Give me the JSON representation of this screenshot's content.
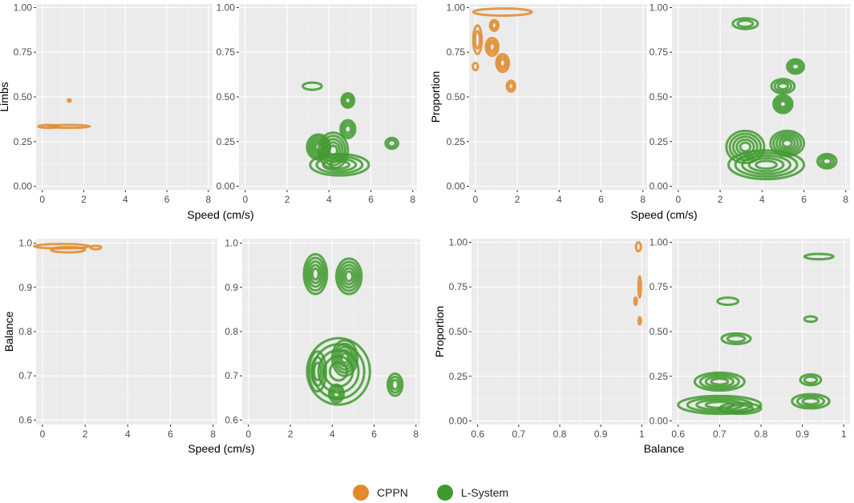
{
  "chart_data": [
    {
      "type": "contour",
      "panel": "top-left",
      "xlabel": "Speed (cm/s)",
      "ylabel": "Limbs",
      "xlim": [
        -0.3,
        8.2
      ],
      "ylim": [
        -0.02,
        1.02
      ],
      "xticks": [
        0,
        2,
        4,
        6,
        8
      ],
      "yticks": [
        0.0,
        0.25,
        0.5,
        0.75,
        1.0
      ],
      "ytick_labels": [
        "0.00",
        "0.25",
        "0.50",
        "0.75",
        "1.00"
      ],
      "series": [
        {
          "name": "CPPN",
          "regions": [
            {
              "x": 0.3,
              "y": 0.335,
              "rx": 0.5,
              "ry": 0.008
            },
            {
              "x": 1.3,
              "y": 0.335,
              "rx": 1.0,
              "ry": 0.008
            },
            {
              "x": 1.3,
              "y": 0.48,
              "rx": 0.07,
              "ry": 0.006
            }
          ]
        },
        {
          "name": "L-System",
          "regions": [
            {
              "x": 3.2,
              "y": 0.56,
              "rx": 0.45,
              "ry": 0.02
            },
            {
              "x": 3.5,
              "y": 0.22,
              "rx": 0.55,
              "ry": 0.07
            },
            {
              "x": 4.5,
              "y": 0.12,
              "rx": 1.4,
              "ry": 0.06
            },
            {
              "x": 4.2,
              "y": 0.2,
              "rx": 0.7,
              "ry": 0.1
            },
            {
              "x": 4.9,
              "y": 0.48,
              "rx": 0.3,
              "ry": 0.04
            },
            {
              "x": 4.9,
              "y": 0.32,
              "rx": 0.35,
              "ry": 0.05
            },
            {
              "x": 7.0,
              "y": 0.24,
              "rx": 0.3,
              "ry": 0.03
            }
          ]
        }
      ]
    },
    {
      "type": "contour",
      "panel": "top-right",
      "xlabel": "Speed (cm/s)",
      "ylabel": "Proportion",
      "xlim": [
        -0.3,
        8.2
      ],
      "ylim": [
        -0.02,
        1.02
      ],
      "xticks": [
        0,
        2,
        4,
        6,
        8
      ],
      "yticks": [
        0.0,
        0.25,
        0.5,
        0.75,
        1.0
      ],
      "ytick_labels": [
        "0.00",
        "0.25",
        "0.50",
        "0.75",
        "1.00"
      ],
      "series": [
        {
          "name": "CPPN",
          "regions": [
            {
              "x": 1.3,
              "y": 0.975,
              "rx": 1.4,
              "ry": 0.02
            },
            {
              "x": 0.1,
              "y": 0.82,
              "rx": 0.2,
              "ry": 0.08
            },
            {
              "x": 0.8,
              "y": 0.78,
              "rx": 0.3,
              "ry": 0.05
            },
            {
              "x": 0.9,
              "y": 0.9,
              "rx": 0.2,
              "ry": 0.03
            },
            {
              "x": 1.3,
              "y": 0.69,
              "rx": 0.3,
              "ry": 0.05
            },
            {
              "x": 0.0,
              "y": 0.67,
              "rx": 0.12,
              "ry": 0.02
            },
            {
              "x": 1.7,
              "y": 0.56,
              "rx": 0.2,
              "ry": 0.03
            }
          ]
        },
        {
          "name": "L-System",
          "regions": [
            {
              "x": 3.2,
              "y": 0.91,
              "rx": 0.6,
              "ry": 0.03
            },
            {
              "x": 5.6,
              "y": 0.67,
              "rx": 0.4,
              "ry": 0.04
            },
            {
              "x": 5.0,
              "y": 0.56,
              "rx": 0.55,
              "ry": 0.04
            },
            {
              "x": 5.0,
              "y": 0.46,
              "rx": 0.45,
              "ry": 0.05
            },
            {
              "x": 3.2,
              "y": 0.22,
              "rx": 0.9,
              "ry": 0.09
            },
            {
              "x": 5.2,
              "y": 0.24,
              "rx": 0.8,
              "ry": 0.07
            },
            {
              "x": 4.2,
              "y": 0.12,
              "rx": 1.8,
              "ry": 0.08
            },
            {
              "x": 7.1,
              "y": 0.14,
              "rx": 0.45,
              "ry": 0.04
            }
          ]
        }
      ]
    },
    {
      "type": "contour",
      "panel": "bottom-left",
      "xlabel": "Speed (cm/s)",
      "ylabel": "Balance",
      "xlim": [
        -0.3,
        8.2
      ],
      "ylim": [
        0.59,
        1.01
      ],
      "xticks": [
        0,
        2,
        4,
        6,
        8
      ],
      "yticks": [
        0.6,
        0.7,
        0.8,
        0.9,
        1.0
      ],
      "ytick_labels": [
        "0.6",
        "0.7",
        "0.8",
        "0.9",
        "1.0"
      ],
      "series": [
        {
          "name": "CPPN",
          "regions": [
            {
              "x": 0.9,
              "y": 0.993,
              "rx": 1.3,
              "ry": 0.005
            },
            {
              "x": 1.2,
              "y": 0.985,
              "rx": 0.8,
              "ry": 0.006
            },
            {
              "x": 2.5,
              "y": 0.99,
              "rx": 0.25,
              "ry": 0.004
            }
          ]
        },
        {
          "name": "L-System",
          "regions": [
            {
              "x": 3.2,
              "y": 0.93,
              "rx": 0.55,
              "ry": 0.045
            },
            {
              "x": 4.8,
              "y": 0.925,
              "rx": 0.6,
              "ry": 0.04
            },
            {
              "x": 4.3,
              "y": 0.71,
              "rx": 1.5,
              "ry": 0.075
            },
            {
              "x": 3.3,
              "y": 0.71,
              "rx": 0.4,
              "ry": 0.045
            },
            {
              "x": 4.6,
              "y": 0.74,
              "rx": 0.6,
              "ry": 0.04
            },
            {
              "x": 4.2,
              "y": 0.66,
              "rx": 0.35,
              "ry": 0.02
            },
            {
              "x": 7.0,
              "y": 0.68,
              "rx": 0.35,
              "ry": 0.025
            }
          ]
        }
      ]
    },
    {
      "type": "contour",
      "panel": "bottom-right",
      "xlabel": "Balance",
      "ylabel": "Proportion",
      "xlim": [
        0.585,
        1.015
      ],
      "ylim": [
        -0.02,
        1.02
      ],
      "xticks": [
        0.6,
        0.7,
        0.8,
        0.9,
        1.0
      ],
      "yticks": [
        0.0,
        0.25,
        0.5,
        0.75,
        1.0
      ],
      "ytick_labels": [
        "0.00",
        "0.25",
        "0.50",
        "0.75",
        "1.00"
      ],
      "series": [
        {
          "name": "CPPN",
          "regions": [
            {
              "x": 0.992,
              "y": 0.975,
              "rx": 0.006,
              "ry": 0.025
            },
            {
              "x": 0.995,
              "y": 0.75,
              "rx": 0.003,
              "ry": 0.06
            },
            {
              "x": 0.985,
              "y": 0.67,
              "rx": 0.003,
              "ry": 0.02
            },
            {
              "x": 0.995,
              "y": 0.56,
              "rx": 0.002,
              "ry": 0.02
            }
          ]
        },
        {
          "name": "L-System",
          "regions": [
            {
              "x": 0.72,
              "y": 0.67,
              "rx": 0.025,
              "ry": 0.02
            },
            {
              "x": 0.74,
              "y": 0.46,
              "rx": 0.035,
              "ry": 0.03
            },
            {
              "x": 0.7,
              "y": 0.22,
              "rx": 0.06,
              "ry": 0.05
            },
            {
              "x": 0.7,
              "y": 0.09,
              "rx": 0.1,
              "ry": 0.05
            },
            {
              "x": 0.75,
              "y": 0.07,
              "rx": 0.05,
              "ry": 0.03
            },
            {
              "x": 0.92,
              "y": 0.57,
              "rx": 0.015,
              "ry": 0.015
            },
            {
              "x": 0.94,
              "y": 0.92,
              "rx": 0.035,
              "ry": 0.015
            },
            {
              "x": 0.92,
              "y": 0.23,
              "rx": 0.025,
              "ry": 0.03
            },
            {
              "x": 0.92,
              "y": 0.11,
              "rx": 0.045,
              "ry": 0.04
            }
          ]
        }
      ]
    }
  ],
  "legend": {
    "items": [
      {
        "label": "CPPN",
        "color": "#E08A2C"
      },
      {
        "label": "L-System",
        "color": "#3F9A2E"
      }
    ]
  },
  "colors": {
    "cppn": "#E08A2C",
    "lsystem": "#3F9A2E",
    "panel_bg": "#EBEBEB",
    "grid": "#FFFFFF"
  }
}
